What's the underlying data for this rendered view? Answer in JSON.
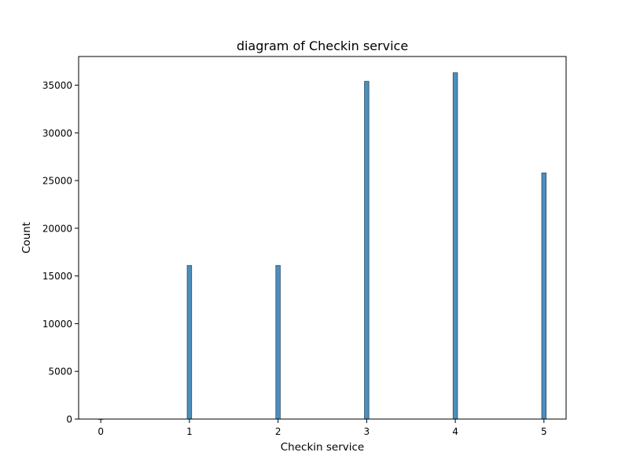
{
  "chart_data": {
    "type": "bar",
    "title": "diagram of Checkin service",
    "xlabel": "Checkin service",
    "ylabel": "Count",
    "x_ticks": [
      0,
      1,
      2,
      3,
      4,
      5
    ],
    "y_ticks": [
      0,
      5000,
      10000,
      15000,
      20000,
      25000,
      30000,
      35000
    ],
    "xlim": [
      -0.25,
      5.25
    ],
    "ylim": [
      0,
      38000
    ],
    "bar_width": 0.05,
    "grid": false,
    "x": [
      0,
      1,
      2,
      3,
      4,
      5
    ],
    "values": [
      1,
      16100,
      16100,
      35400,
      36300,
      25800
    ],
    "bar_color": "#4c8fbd",
    "edge_color": "#2f4f64"
  }
}
